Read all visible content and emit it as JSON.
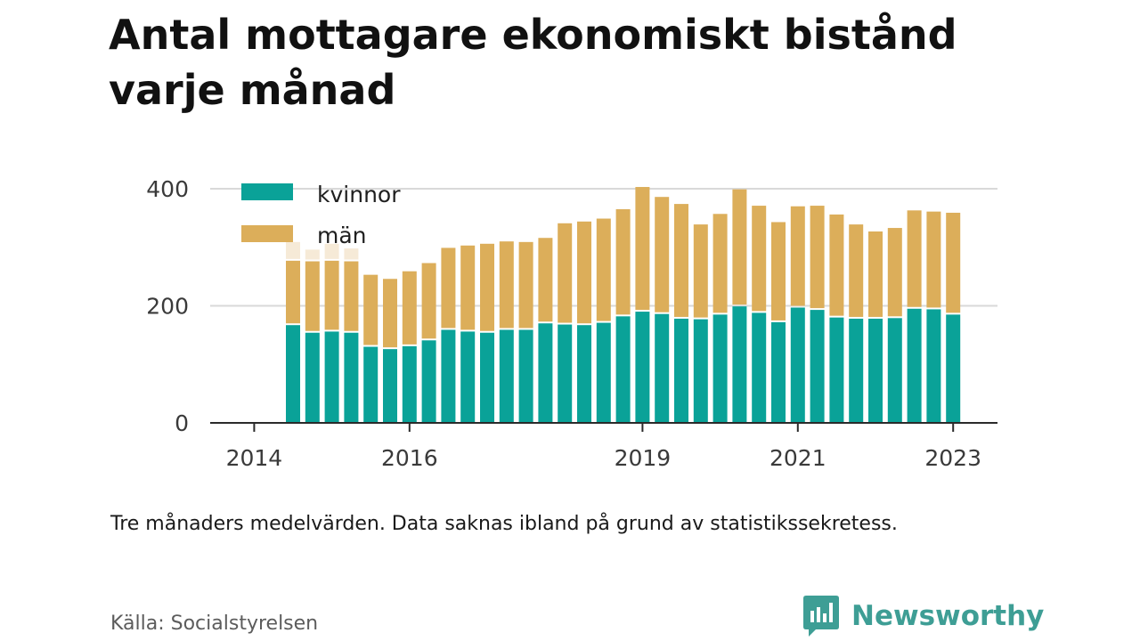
{
  "header": {
    "title": "Antal mottagare ekonomiskt bistånd varje månad"
  },
  "footer": {
    "note": "Tre månaders medelvärden. Data saknas ibland på grund av statistikssekretess.",
    "source": "Källa: Socialstyrelsen",
    "brand": "Newsworthy",
    "brand_icon": "bar-chart-speech-bubble-icon"
  },
  "colors": {
    "kvinnor": "#0aa298",
    "man": "#dcae5a",
    "faded": "#f6ead7",
    "grid": "#d9d9d9",
    "axis": "#2a2a2a",
    "brand": "#3e9e95"
  },
  "chart_data": {
    "type": "bar",
    "stacked": true,
    "title": "Antal mottagare ekonomiskt bistånd varje månad",
    "xlabel": "",
    "ylabel": "",
    "ylim": [
      0,
      400
    ],
    "yticks": [
      0,
      200,
      400
    ],
    "xticks": [
      "2014",
      "2016",
      "2019",
      "2021",
      "2023"
    ],
    "grid": true,
    "legend_position": "top-left",
    "categories": [
      "2014 Q3",
      "2014 Q4",
      "2015 Q1",
      "2015 Q2",
      "2015 Q3",
      "2015 Q4",
      "2016 Q1",
      "2016 Q2",
      "2016 Q3",
      "2016 Q4",
      "2017 Q1",
      "2017 Q2",
      "2017 Q3",
      "2017 Q4",
      "2018 Q1",
      "2018 Q2",
      "2018 Q3",
      "2018 Q4",
      "2019 Q1",
      "2019 Q2",
      "2019 Q3",
      "2019 Q4",
      "2020 Q1",
      "2020 Q2",
      "2020 Q3",
      "2020 Q4",
      "2021 Q1",
      "2021 Q2",
      "2021 Q3",
      "2021 Q4",
      "2022 Q1",
      "2022 Q2",
      "2022 Q3",
      "2022 Q4",
      "2023 Q1"
    ],
    "series": [
      {
        "name": "kvinnor",
        "color": "#0aa298",
        "values": [
          167,
          154,
          156,
          154,
          130,
          126,
          131,
          141,
          159,
          156,
          154,
          159,
          159,
          170,
          168,
          167,
          171,
          182,
          190,
          186,
          178,
          177,
          185,
          199,
          188,
          172,
          197,
          193,
          180,
          178,
          178,
          179,
          195,
          194,
          185
        ]
      },
      {
        "name": "män",
        "color": "#dcae5a",
        "values": [
          110,
          122,
          121,
          122,
          123,
          120,
          128,
          132,
          140,
          147,
          152,
          151,
          150,
          146,
          173,
          177,
          178,
          183,
          213,
          200,
          196,
          162,
          172,
          200,
          183,
          171,
          173,
          178,
          176,
          161,
          149,
          154,
          168,
          167,
          174
        ]
      },
      {
        "name": "",
        "color": "#f6ead7",
        "values": [
          32,
          20,
          29,
          22,
          0,
          0,
          0,
          0,
          0,
          0,
          0,
          0,
          0,
          0,
          0,
          0,
          0,
          0,
          0,
          0,
          0,
          0,
          0,
          0,
          0,
          0,
          0,
          0,
          0,
          0,
          0,
          0,
          0,
          0,
          0
        ]
      }
    ]
  }
}
